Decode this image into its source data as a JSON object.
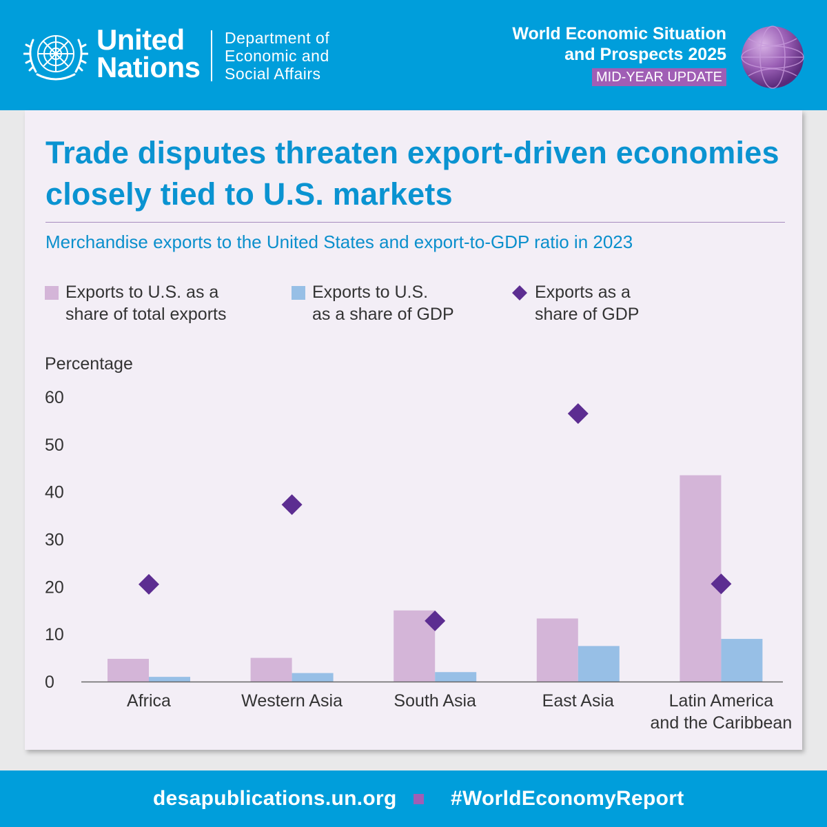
{
  "header": {
    "org_line1": "United",
    "org_line2": "Nations",
    "dept_line1": "Department of",
    "dept_line2": "Economic and",
    "dept_line3": "Social Affairs",
    "report_line1": "World Economic Situation",
    "report_line2": "and Prospects 2025",
    "report_badge": "MID-YEAR UPDATE",
    "emblem_icon": "un-emblem-icon",
    "globe_icon": "globe-icon"
  },
  "card": {
    "title": "Trade disputes threaten export-driven economies closely tied to U.S. markets",
    "subtitle": "Merchandise exports to the United States and export-to-GDP ratio in 2023"
  },
  "legend": [
    {
      "line1": "Exports to U.S. as a",
      "line2": "share of total exports",
      "color": "#d4b5d8",
      "marker": "square"
    },
    {
      "line1": "Exports to U.S.",
      "line2": "as a share of GDP",
      "color": "#97bfe6",
      "marker": "square"
    },
    {
      "line1": "Exports as a",
      "line2": "share of GDP",
      "color": "#5c2d91",
      "marker": "diamond"
    }
  ],
  "chart_data": {
    "type": "bar",
    "ylabel": "Percentage",
    "ylim": [
      0,
      60
    ],
    "yticks": [
      0,
      10,
      20,
      30,
      40,
      50,
      60
    ],
    "grid": false,
    "legend_position": "top",
    "categories": [
      [
        "Africa"
      ],
      [
        "Western Asia"
      ],
      [
        "South Asia"
      ],
      [
        "East Asia"
      ],
      [
        "Latin America",
        "and the Caribbean"
      ]
    ],
    "series": [
      {
        "name": "Exports to U.S. as a share of total exports",
        "type": "bar",
        "color": "#d4b5d8",
        "values": [
          4.8,
          5.0,
          15.0,
          13.3,
          43.5
        ]
      },
      {
        "name": "Exports to U.S. as a share of GDP",
        "type": "bar",
        "color": "#97bfe6",
        "values": [
          1.0,
          1.8,
          2.0,
          7.5,
          9.0
        ]
      },
      {
        "name": "Exports as a share of GDP",
        "type": "marker",
        "color": "#5c2d91",
        "values": [
          20.5,
          37.3,
          12.8,
          56.5,
          20.6
        ]
      }
    ]
  },
  "footer": {
    "url": "desapublications.un.org",
    "hashtag": "#WorldEconomyReport",
    "separator_color": "#a05eb5"
  }
}
